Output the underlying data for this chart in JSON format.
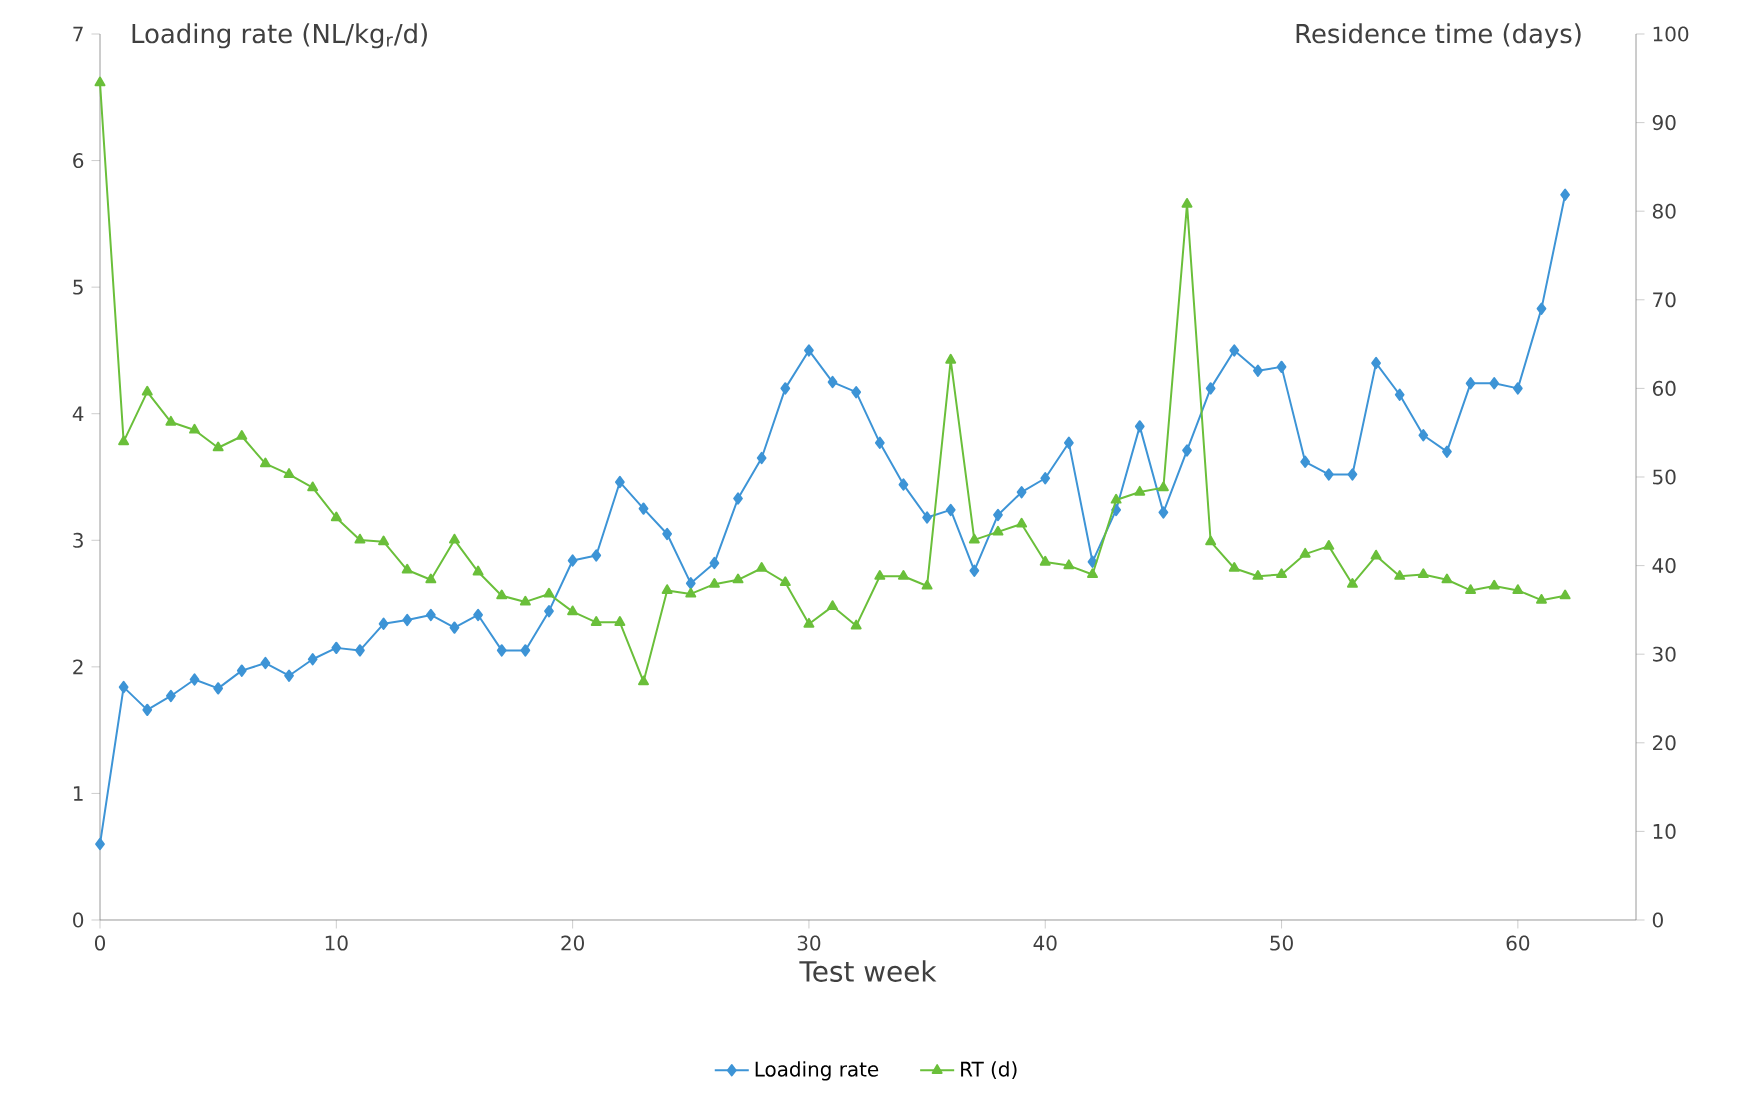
{
  "chart_data": {
    "type": "line",
    "xlabel": "Test week",
    "ylabel": "Loading rate (NL/kg$_{r}$/d)",
    "y2label": "Residence time (days)",
    "xlim": [
      0,
      65
    ],
    "xticks": [
      0,
      10,
      20,
      30,
      40,
      50,
      60
    ],
    "ylim": [
      0,
      7
    ],
    "yticks": [
      0,
      1,
      2,
      3,
      4,
      5,
      6,
      7
    ],
    "y2lim": [
      0,
      100
    ],
    "y2ticks": [
      0,
      10,
      20,
      30,
      40,
      50,
      60,
      70,
      80,
      90,
      100
    ],
    "x": [
      0,
      1,
      2,
      3,
      4,
      5,
      6,
      7,
      8,
      9,
      10,
      11,
      12,
      13,
      14,
      15,
      16,
      17,
      18,
      19,
      20,
      21,
      22,
      23,
      24,
      25,
      26,
      27,
      28,
      29,
      30,
      31,
      32,
      33,
      34,
      35,
      36,
      37,
      38,
      39,
      40,
      41,
      42,
      43,
      44,
      45,
      46,
      47,
      48,
      49,
      50,
      51,
      52,
      53,
      54,
      55,
      56,
      57,
      58,
      59,
      60,
      61,
      62
    ],
    "legend": "bottom",
    "line_style": "solid",
    "series": [
      {
        "name": "Loading rate",
        "color": "#3d94d6",
        "marker": "diamond",
        "values": [
          0.6,
          1.84,
          1.66,
          1.77,
          1.9,
          1.83,
          1.97,
          2.03,
          1.93,
          2.06,
          2.15,
          2.13,
          2.34,
          2.37,
          2.41,
          2.31,
          2.41,
          2.13,
          2.13,
          2.44,
          2.84,
          2.88,
          3.46,
          3.25,
          3.05,
          2.66,
          2.82,
          3.33,
          3.65,
          4.2,
          4.5,
          4.25,
          4.17,
          3.77,
          3.44,
          3.18,
          3.24,
          2.76,
          3.2,
          3.38,
          3.49,
          3.77,
          2.83,
          3.24,
          3.9,
          3.22,
          3.71,
          4.2,
          4.5,
          4.34,
          4.37,
          3.62,
          3.52,
          3.52,
          4.4,
          4.15,
          3.83,
          3.7,
          4.24,
          4.24,
          4.2,
          4.83,
          5.73
        ]
      },
      {
        "name": "RT (d)",
        "color": "#6abf3a",
        "marker": "triangle",
        "axis": "y2",
        "values": [
          94.5,
          54,
          59.6,
          56.2,
          55.3,
          53.3,
          54.6,
          51.5,
          50.3,
          48.8,
          45.4,
          42.9,
          42.7,
          39.5,
          38.4,
          42.9,
          39.3,
          36.6,
          35.9,
          36.8,
          34.8,
          33.6,
          33.6,
          26.9,
          37.2,
          36.8,
          37.9,
          38.4,
          39.7,
          38.1,
          33.4,
          35.4,
          33.2,
          38.8,
          38.8,
          37.7,
          63.2,
          42.9,
          43.8,
          44.7,
          40.4,
          40,
          39,
          47.4,
          48.3,
          48.8,
          80.8,
          42.7,
          39.7,
          38.8,
          39,
          41.3,
          42.2,
          37.9,
          41.1,
          38.8,
          39,
          38.4,
          37.2,
          37.7,
          37.2,
          36.1,
          36.6
        ]
      }
    ]
  }
}
